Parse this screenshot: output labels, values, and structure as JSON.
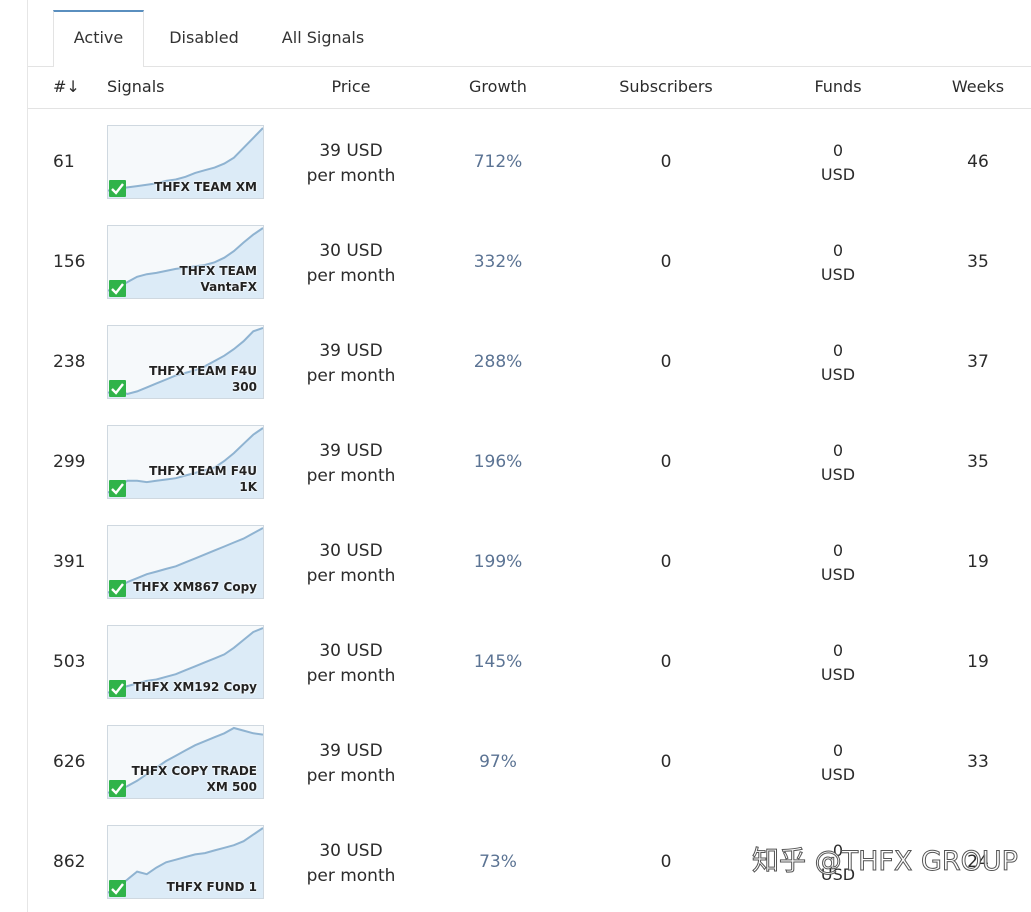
{
  "tabs": [
    {
      "label": "Active"
    },
    {
      "label": "Disabled"
    },
    {
      "label": "All Signals"
    }
  ],
  "columns": {
    "rank": "#↓",
    "signals": "Signals",
    "price": "Price",
    "growth": "Growth",
    "subscribers": "Subscribers",
    "funds": "Funds",
    "weeks": "Weeks"
  },
  "rows": [
    {
      "rank": "61",
      "label1": "THFX TEAM XM",
      "label2": "",
      "price": "39 USD",
      "period": "per month",
      "growth": "712%",
      "subscribers": "0",
      "funds": "0",
      "funds_unit": "USD",
      "weeks": "46"
    },
    {
      "rank": "156",
      "label1": "THFX TEAM",
      "label2": "VantaFX",
      "price": "30 USD",
      "period": "per month",
      "growth": "332%",
      "subscribers": "0",
      "funds": "0",
      "funds_unit": "USD",
      "weeks": "35"
    },
    {
      "rank": "238",
      "label1": "THFX TEAM F4U",
      "label2": "300",
      "price": "39 USD",
      "period": "per month",
      "growth": "288%",
      "subscribers": "0",
      "funds": "0",
      "funds_unit": "USD",
      "weeks": "37"
    },
    {
      "rank": "299",
      "label1": "THFX TEAM F4U",
      "label2": "1K",
      "price": "39 USD",
      "period": "per month",
      "growth": "196%",
      "subscribers": "0",
      "funds": "0",
      "funds_unit": "USD",
      "weeks": "35"
    },
    {
      "rank": "391",
      "label1": "THFX XM867 Copy",
      "label2": "",
      "price": "30 USD",
      "period": "per month",
      "growth": "199%",
      "subscribers": "0",
      "funds": "0",
      "funds_unit": "USD",
      "weeks": "19"
    },
    {
      "rank": "503",
      "label1": "THFX XM192 Copy",
      "label2": "",
      "price": "30 USD",
      "period": "per month",
      "growth": "145%",
      "subscribers": "0",
      "funds": "0",
      "funds_unit": "USD",
      "weeks": "19"
    },
    {
      "rank": "626",
      "label1": "THFX COPY TRADE",
      "label2": "XM 500",
      "price": "39 USD",
      "period": "per month",
      "growth": "97%",
      "subscribers": "0",
      "funds": "0",
      "funds_unit": "USD",
      "weeks": "33"
    },
    {
      "rank": "862",
      "label1": "THFX FUND 1",
      "label2": "",
      "price": "30 USD",
      "period": "per month",
      "growth": "73%",
      "subscribers": "0",
      "funds": "0",
      "funds_unit": "USD",
      "weeks": "24"
    }
  ],
  "watermark": "知乎 @THFX GROUP",
  "icons": {
    "verified": "checkmark-icon"
  },
  "colors": {
    "growth_text": "#5b7393",
    "chart_line": "#8fb3d1",
    "chart_fill": "#dcebf7",
    "check_green": "#2fb34a",
    "tab_accent": "#5a8fbf"
  }
}
